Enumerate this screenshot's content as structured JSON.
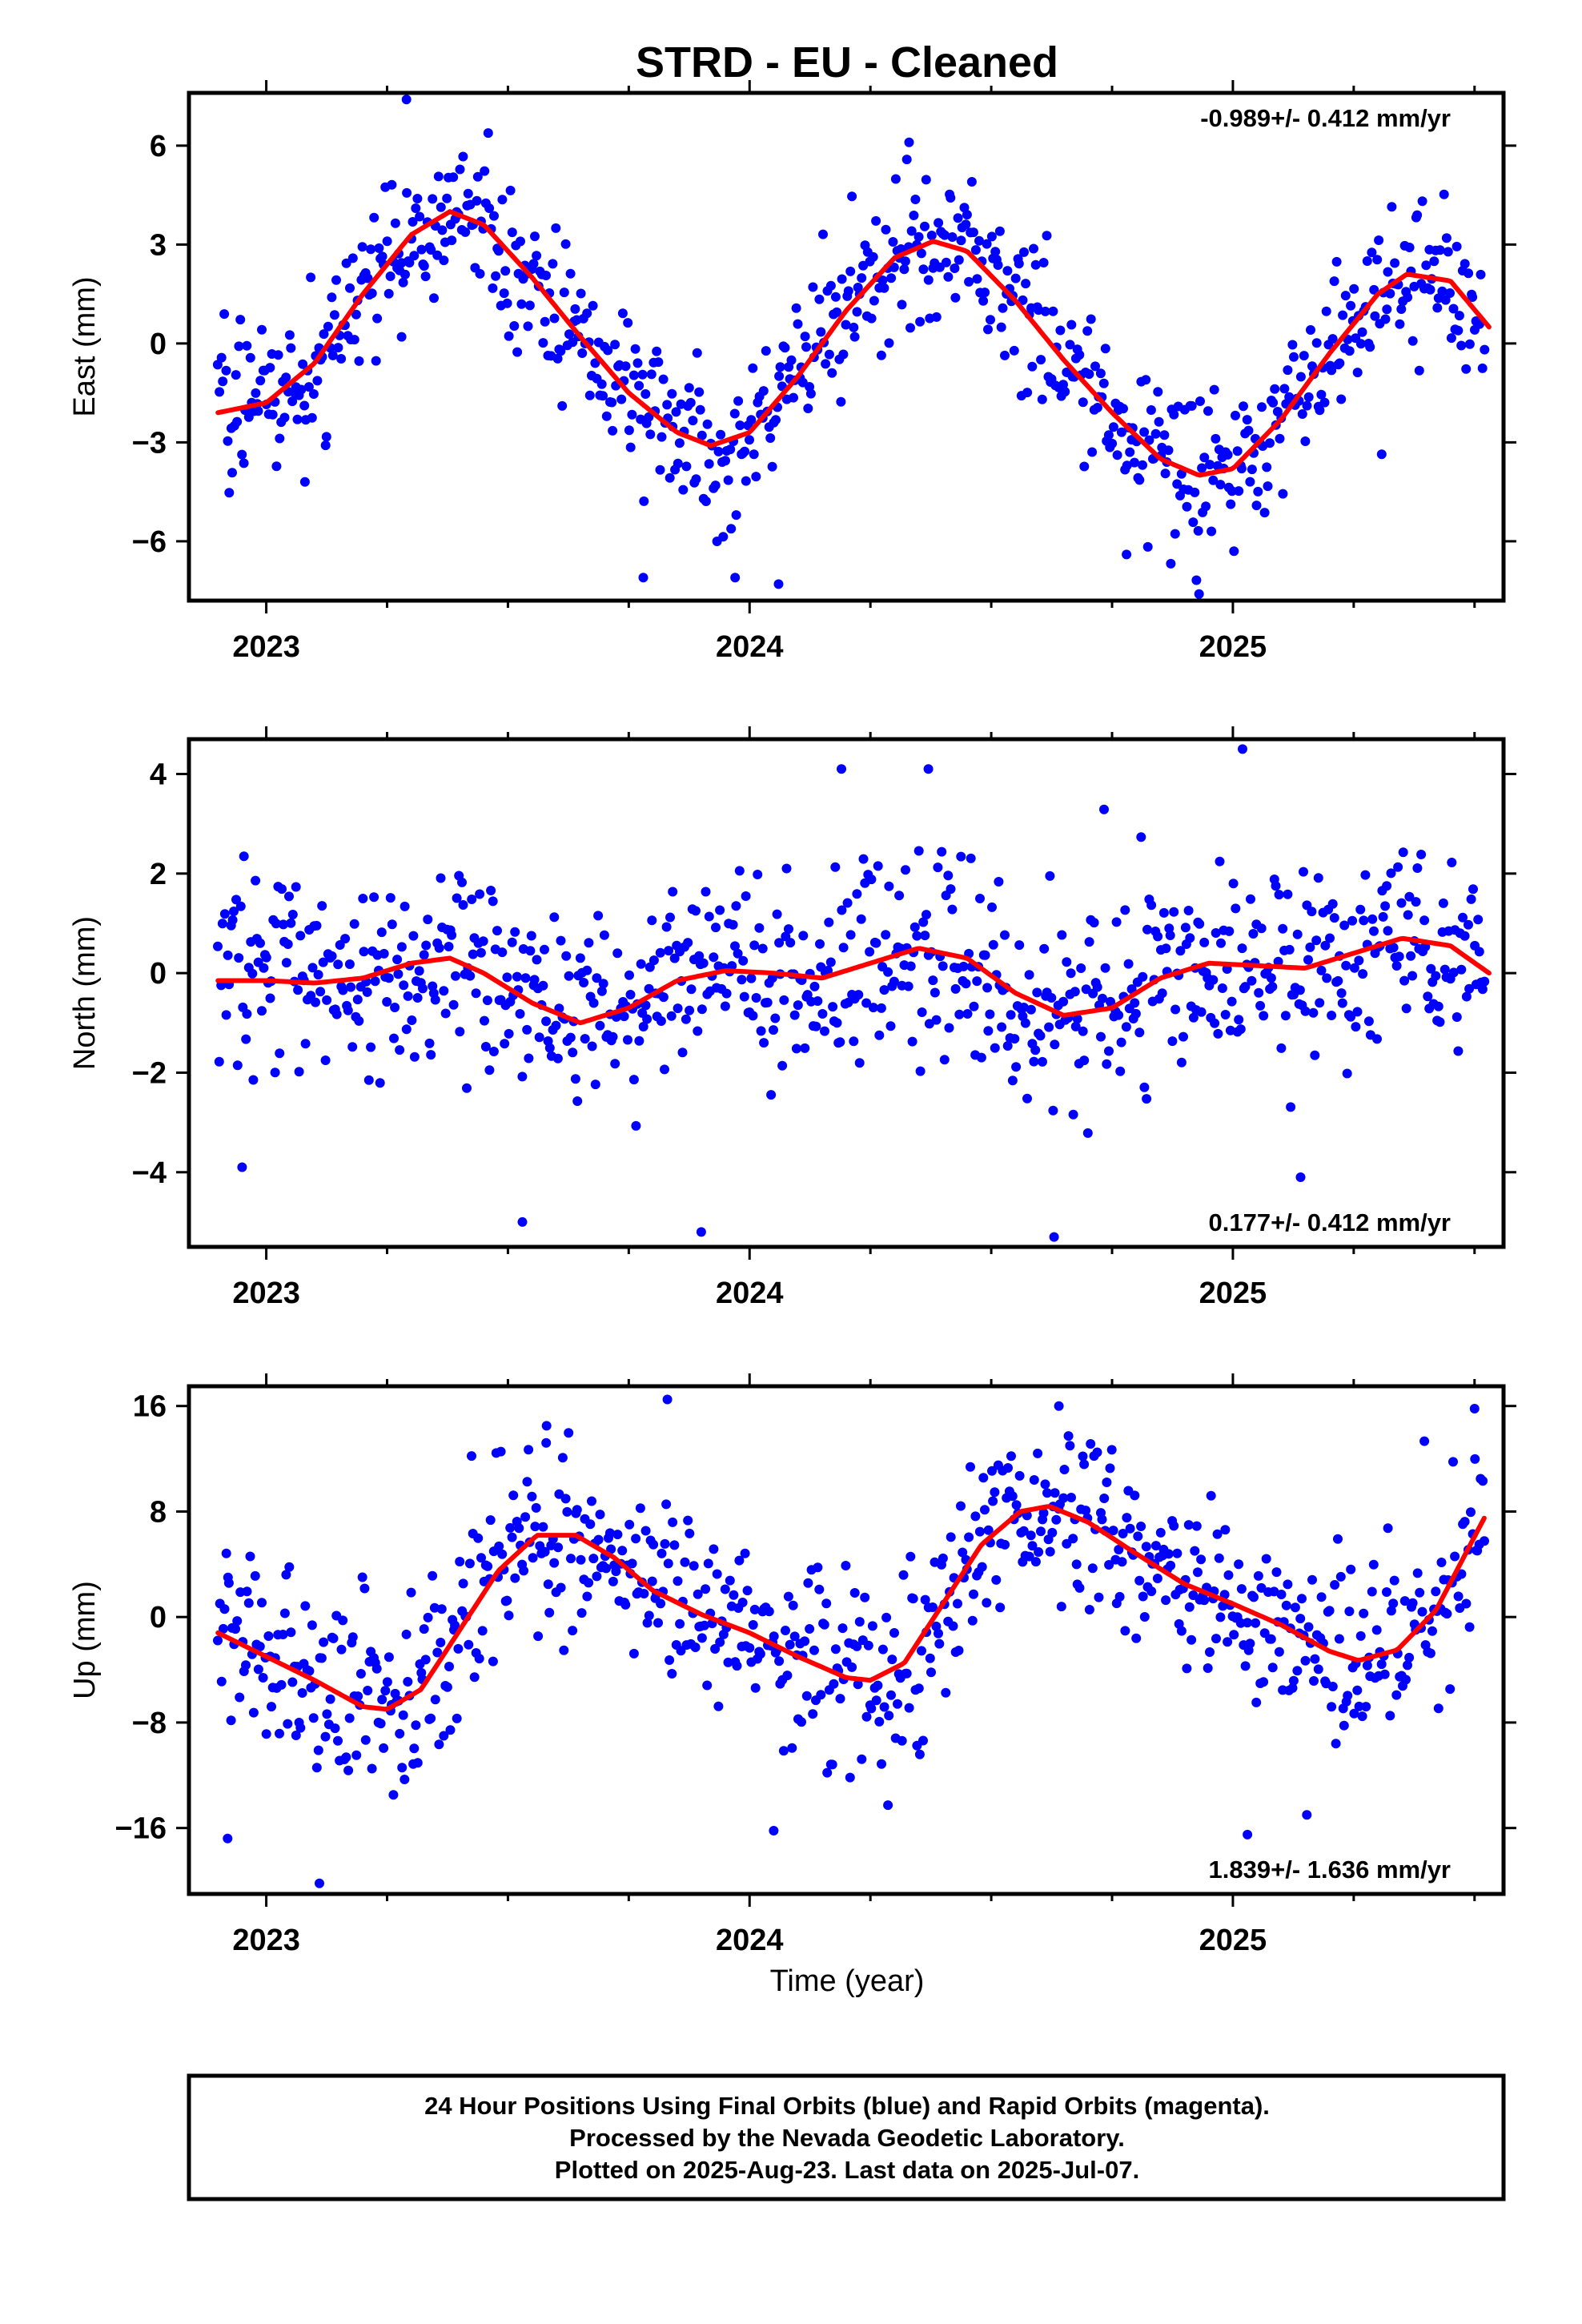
{
  "page": {
    "title": "STRD  - EU - Cleaned",
    "footer": [
      "24 Hour Positions Using Final Orbits (blue) and Rapid Orbits (magenta).",
      "Processed by the Nevada Geodetic Laboratory.",
      "Plotted on 2025-Aug-23. Last data on 2025-Jul-07."
    ]
  },
  "colors": {
    "points": "#0000ff",
    "fit": "#ff0000",
    "axis": "#000000"
  },
  "chart_data": [
    {
      "type": "scatter",
      "component": "east",
      "ylabel": "East (mm)",
      "xlabel": "",
      "xlim": [
        2022.84,
        2025.56
      ],
      "ylim": [
        -7.8,
        7.6
      ],
      "xticks": [
        2023,
        2024,
        2025
      ],
      "yticks": [
        -6,
        -3,
        0,
        3,
        6
      ],
      "rate_label": "-0.989+/- 0.412 mm/yr",
      "rate_position": "top-right",
      "fit": {
        "x": [
          2022.9,
          2023.0,
          2023.1,
          2023.2,
          2023.3,
          2023.38,
          2023.45,
          2023.55,
          2023.65,
          2023.75,
          2023.85,
          2023.92,
          2024.0,
          2024.1,
          2024.2,
          2024.3,
          2024.38,
          2024.45,
          2024.55,
          2024.65,
          2024.75,
          2024.85,
          2024.93,
          2025.0,
          2025.1,
          2025.2,
          2025.3,
          2025.36,
          2025.45,
          2025.53
        ],
        "y": [
          -2.1,
          -1.8,
          -0.6,
          1.5,
          3.3,
          4.0,
          3.6,
          2.0,
          0.2,
          -1.5,
          -2.7,
          -3.1,
          -2.7,
          -1.0,
          1.0,
          2.6,
          3.1,
          2.8,
          1.3,
          -0.5,
          -2.1,
          -3.5,
          -4.0,
          -3.8,
          -2.3,
          -0.3,
          1.5,
          2.1,
          1.9,
          0.5
        ]
      },
      "points": {
        "seed": 101,
        "start": 2022.9,
        "end": 2025.52,
        "count": 780,
        "spread": 1.15,
        "outliers": [
          [
            2023.08,
            -4.2
          ],
          [
            2023.28,
            0.2
          ],
          [
            2023.78,
            -7.1
          ],
          [
            2023.97,
            -7.1
          ],
          [
            2024.06,
            -7.3
          ],
          [
            2024.93,
            -7.6
          ],
          [
            2024.78,
            -6.4
          ],
          [
            2023.29,
            7.4
          ],
          [
            2024.33,
            6.1
          ]
        ]
      }
    },
    {
      "type": "scatter",
      "component": "north",
      "ylabel": "North (mm)",
      "xlabel": "",
      "xlim": [
        2022.84,
        2025.56
      ],
      "ylim": [
        -5.5,
        4.7
      ],
      "xticks": [
        2023,
        2024,
        2025
      ],
      "yticks": [
        -4,
        -2,
        0,
        2,
        4
      ],
      "rate_label": "0.177+/- 0.412 mm/yr",
      "rate_position": "bottom-right",
      "fit": {
        "x": [
          2022.9,
          2023.0,
          2023.1,
          2023.2,
          2023.3,
          2023.38,
          2023.45,
          2023.55,
          2023.65,
          2023.75,
          2023.85,
          2023.95,
          2024.05,
          2024.15,
          2024.25,
          2024.35,
          2024.45,
          2024.55,
          2024.65,
          2024.75,
          2024.85,
          2024.95,
          2025.05,
          2025.15,
          2025.25,
          2025.35,
          2025.45,
          2025.53
        ],
        "y": [
          -0.15,
          -0.15,
          -0.2,
          -0.1,
          0.2,
          0.3,
          0.0,
          -0.6,
          -1.0,
          -0.7,
          -0.15,
          0.05,
          0.0,
          -0.1,
          0.2,
          0.5,
          0.3,
          -0.4,
          -0.85,
          -0.7,
          -0.1,
          0.2,
          0.15,
          0.1,
          0.4,
          0.7,
          0.55,
          0.0
        ]
      },
      "points": {
        "seed": 202,
        "start": 2022.9,
        "end": 2025.52,
        "count": 780,
        "spread": 1.0,
        "outliers": [
          [
            2023.53,
            -5.0
          ],
          [
            2023.9,
            -5.2
          ],
          [
            2024.63,
            -5.3
          ],
          [
            2025.02,
            4.5
          ],
          [
            2024.37,
            4.1
          ],
          [
            2024.19,
            4.1
          ],
          [
            2025.14,
            -4.1
          ],
          [
            2022.95,
            -3.9
          ]
        ]
      }
    },
    {
      "type": "scatter",
      "component": "up",
      "ylabel": "Up (mm)",
      "xlabel": "Time (year)",
      "xlim": [
        2022.84,
        2025.56
      ],
      "ylim": [
        -21,
        17.5
      ],
      "xticks": [
        2023,
        2024,
        2025
      ],
      "yticks": [
        -16,
        -8,
        0,
        8,
        16
      ],
      "rate_label": "1.839+/- 1.636 mm/yr",
      "rate_position": "bottom-right",
      "fit": {
        "x": [
          2022.9,
          2023.0,
          2023.1,
          2023.2,
          2023.25,
          2023.32,
          2023.4,
          2023.48,
          2023.56,
          2023.64,
          2023.72,
          2023.8,
          2023.9,
          2024.0,
          2024.1,
          2024.2,
          2024.25,
          2024.32,
          2024.4,
          2024.48,
          2024.56,
          2024.62,
          2024.7,
          2024.8,
          2024.9,
          2025.0,
          2025.1,
          2025.2,
          2025.26,
          2025.34,
          2025.42,
          2025.52
        ],
        "y": [
          -1.2,
          -3.0,
          -4.8,
          -6.8,
          -7.0,
          -5.5,
          -1.0,
          3.5,
          6.2,
          6.2,
          4.5,
          2.0,
          0.2,
          -1.2,
          -3.0,
          -4.6,
          -4.8,
          -3.5,
          1.0,
          5.5,
          8.0,
          8.4,
          7.2,
          4.8,
          2.5,
          1.0,
          -0.6,
          -2.6,
          -3.3,
          -2.5,
          0.5,
          7.5
        ]
      },
      "points": {
        "seed": 303,
        "start": 2022.9,
        "end": 2025.52,
        "count": 780,
        "spread": 3.5,
        "outliers": [
          [
            2023.11,
            -20.2
          ],
          [
            2023.83,
            16.5
          ],
          [
            2024.05,
            -16.2
          ],
          [
            2025.03,
            -16.5
          ],
          [
            2022.92,
            -16.8
          ],
          [
            2024.64,
            16.0
          ],
          [
            2025.5,
            15.8
          ],
          [
            2023.58,
            14.5
          ]
        ]
      }
    }
  ]
}
